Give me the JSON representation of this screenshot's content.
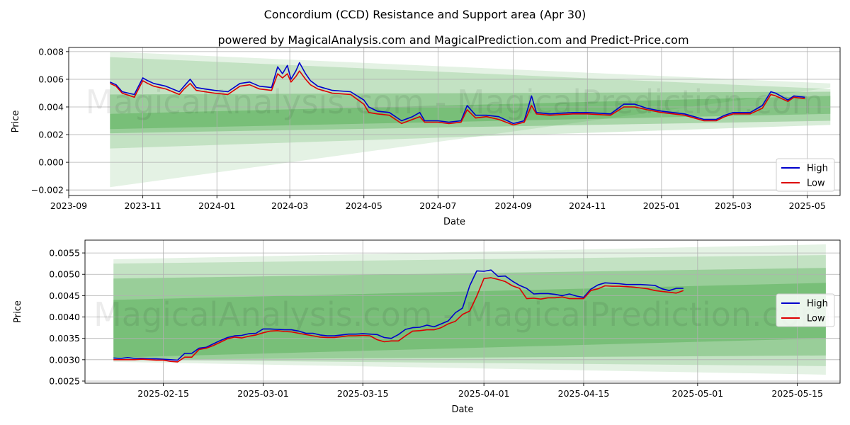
{
  "title": "Concordium (CCD) Resistance and Support area (Apr 30)",
  "subtitle": "powered by MagicalAnalysis.com and MagicalPrediction.com and Predict-Price.com",
  "watermark": "MagicalAnalysis.com - MagicalPrediction.com",
  "colors": {
    "high": "#0000cc",
    "low": "#dd0000",
    "band": "#2e9a2e",
    "grid": "#b0b0b0"
  },
  "chart_data": [
    {
      "type": "line",
      "xlabel": "Date",
      "ylabel": "Price",
      "xlim": [
        "2023-09-01",
        "2025-05-28"
      ],
      "ylim": [
        -0.0024,
        0.0083
      ],
      "x_ticks": [
        "2023-09-01",
        "2023-11-01",
        "2024-01-01",
        "2024-03-01",
        "2024-05-01",
        "2024-07-01",
        "2024-09-01",
        "2024-11-01",
        "2025-01-01",
        "2025-03-01",
        "2025-05-01"
      ],
      "x_tick_labels": [
        "2023-09",
        "2023-11",
        "2024-01",
        "2024-03",
        "2024-05",
        "2024-07",
        "2024-09",
        "2024-11",
        "2025-01",
        "2025-03",
        "2025-05"
      ],
      "y_ticks": [
        -0.002,
        0.0,
        0.002,
        0.004,
        0.006,
        0.008
      ],
      "y_tick_labels": [
        "−0.002",
        "0.000",
        "0.002",
        "0.004",
        "0.006",
        "0.008"
      ],
      "grid": true,
      "legend": {
        "position": "lower-right",
        "entries": [
          "High",
          "Low"
        ]
      },
      "bands": [
        {
          "start": "2023-10-05",
          "end": "2025-05-20",
          "lower_start": -0.0018,
          "lower_end": 0.0054,
          "upper_start": 0.008,
          "upper_end": 0.0057,
          "opacity": 0.13
        },
        {
          "start": "2023-10-05",
          "end": "2025-05-20",
          "lower_start": 0.001,
          "lower_end": 0.0027,
          "upper_start": 0.0076,
          "upper_end": 0.0053,
          "opacity": 0.18
        },
        {
          "start": "2023-10-05",
          "end": "2025-05-20",
          "lower_start": 0.0021,
          "lower_end": 0.003,
          "upper_start": 0.0049,
          "upper_end": 0.0051,
          "opacity": 0.28
        },
        {
          "start": "2023-10-05",
          "end": "2025-05-20",
          "lower_start": 0.0024,
          "lower_end": 0.0035,
          "upper_start": 0.0035,
          "upper_end": 0.0048,
          "opacity": 0.3
        }
      ],
      "series": [
        {
          "name": "High",
          "x": [
            "2023-10-05",
            "2023-10-10",
            "2023-10-15",
            "2023-10-25",
            "2023-11-01",
            "2023-11-05",
            "2023-11-10",
            "2023-11-20",
            "2023-12-01",
            "2023-12-05",
            "2023-12-10",
            "2023-12-15",
            "2023-12-22",
            "2023-12-30",
            "2024-01-10",
            "2024-01-20",
            "2024-01-28",
            "2024-02-05",
            "2024-02-15",
            "2024-02-20",
            "2024-02-24",
            "2024-02-28",
            "2024-03-02",
            "2024-03-06",
            "2024-03-09",
            "2024-03-14",
            "2024-03-18",
            "2024-03-24",
            "2024-04-05",
            "2024-04-20",
            "2024-05-01",
            "2024-05-05",
            "2024-05-12",
            "2024-05-22",
            "2024-06-01",
            "2024-06-10",
            "2024-06-16",
            "2024-06-20",
            "2024-07-01",
            "2024-07-10",
            "2024-07-20",
            "2024-07-25",
            "2024-08-01",
            "2024-08-10",
            "2024-08-20",
            "2024-09-01",
            "2024-09-10",
            "2024-09-16",
            "2024-09-20",
            "2024-10-01",
            "2024-10-20",
            "2024-11-01",
            "2024-11-20",
            "2024-12-01",
            "2024-12-10",
            "2024-12-20",
            "2025-01-01",
            "2025-01-20",
            "2025-02-05",
            "2025-02-15",
            "2025-02-22",
            "2025-03-01",
            "2025-03-15",
            "2025-03-25",
            "2025-04-01",
            "2025-04-05",
            "2025-04-15",
            "2025-04-20",
            "2025-04-29"
          ],
          "values": [
            0.0058,
            0.0056,
            0.0051,
            0.0049,
            0.0061,
            0.0059,
            0.0057,
            0.0055,
            0.0051,
            0.0055,
            0.006,
            0.0054,
            0.0053,
            0.0052,
            0.0051,
            0.0057,
            0.0058,
            0.0055,
            0.0054,
            0.0069,
            0.0064,
            0.007,
            0.006,
            0.0066,
            0.0072,
            0.0064,
            0.0059,
            0.0055,
            0.0052,
            0.0051,
            0.0045,
            0.004,
            0.0037,
            0.0036,
            0.003,
            0.0033,
            0.0036,
            0.003,
            0.003,
            0.0029,
            0.003,
            0.0041,
            0.0034,
            0.0034,
            0.0033,
            0.0028,
            0.003,
            0.0048,
            0.0036,
            0.0035,
            0.0036,
            0.0036,
            0.0035,
            0.0042,
            0.0042,
            0.0039,
            0.0037,
            0.0035,
            0.0031,
            0.0031,
            0.0034,
            0.0036,
            0.0036,
            0.0041,
            0.0051,
            0.005,
            0.0045,
            0.0048,
            0.0047
          ]
        },
        {
          "name": "Low",
          "x": [
            "2023-10-05",
            "2023-10-10",
            "2023-10-15",
            "2023-10-25",
            "2023-11-01",
            "2023-11-05",
            "2023-11-10",
            "2023-11-20",
            "2023-12-01",
            "2023-12-05",
            "2023-12-10",
            "2023-12-15",
            "2023-12-22",
            "2023-12-30",
            "2024-01-10",
            "2024-01-20",
            "2024-01-28",
            "2024-02-05",
            "2024-02-15",
            "2024-02-20",
            "2024-02-24",
            "2024-02-28",
            "2024-03-02",
            "2024-03-06",
            "2024-03-09",
            "2024-03-14",
            "2024-03-18",
            "2024-03-24",
            "2024-04-05",
            "2024-04-20",
            "2024-05-01",
            "2024-05-05",
            "2024-05-12",
            "2024-05-22",
            "2024-06-01",
            "2024-06-10",
            "2024-06-16",
            "2024-06-20",
            "2024-07-01",
            "2024-07-10",
            "2024-07-20",
            "2024-07-25",
            "2024-08-01",
            "2024-08-10",
            "2024-08-20",
            "2024-09-01",
            "2024-09-10",
            "2024-09-16",
            "2024-09-20",
            "2024-10-01",
            "2024-10-20",
            "2024-11-01",
            "2024-11-20",
            "2024-12-01",
            "2024-12-10",
            "2024-12-20",
            "2025-01-01",
            "2025-01-20",
            "2025-02-05",
            "2025-02-15",
            "2025-02-22",
            "2025-03-01",
            "2025-03-15",
            "2025-03-25",
            "2025-04-01",
            "2025-04-05",
            "2025-04-15",
            "2025-04-20",
            "2025-04-29"
          ],
          "values": [
            0.0057,
            0.0055,
            0.005,
            0.0047,
            0.0059,
            0.0057,
            0.0055,
            0.0053,
            0.0049,
            0.0053,
            0.0057,
            0.0052,
            0.0051,
            0.005,
            0.0049,
            0.0055,
            0.0056,
            0.0053,
            0.0052,
            0.0064,
            0.0061,
            0.0064,
            0.0058,
            0.0062,
            0.0066,
            0.006,
            0.0056,
            0.0053,
            0.005,
            0.0049,
            0.0042,
            0.0036,
            0.0035,
            0.0034,
            0.0028,
            0.0031,
            0.0033,
            0.0029,
            0.0029,
            0.0028,
            0.0029,
            0.0038,
            0.0032,
            0.0033,
            0.0031,
            0.0027,
            0.0029,
            0.0041,
            0.0035,
            0.0034,
            0.0035,
            0.0035,
            0.0034,
            0.004,
            0.004,
            0.0038,
            0.0036,
            0.0034,
            0.003,
            0.003,
            0.0033,
            0.0035,
            0.0035,
            0.0039,
            0.0049,
            0.0048,
            0.0044,
            0.0047,
            0.0046
          ]
        }
      ]
    },
    {
      "type": "line",
      "xlabel": "Date",
      "ylabel": "Price",
      "xlim": [
        "2025-02-04",
        "2025-05-21"
      ],
      "ylim": [
        0.00245,
        0.0058
      ],
      "x_ticks": [
        "2025-02-15",
        "2025-03-01",
        "2025-03-15",
        "2025-04-01",
        "2025-04-15",
        "2025-05-01",
        "2025-05-15"
      ],
      "x_tick_labels": [
        "2025-02-15",
        "2025-03-01",
        "2025-03-15",
        "2025-04-01",
        "2025-04-15",
        "2025-05-01",
        "2025-05-15"
      ],
      "y_ticks": [
        0.0025,
        0.003,
        0.0035,
        0.004,
        0.0045,
        0.005,
        0.0055
      ],
      "y_tick_labels": [
        "0.0025",
        "0.0030",
        "0.0035",
        "0.0040",
        "0.0045",
        "0.0050",
        "0.0055"
      ],
      "grid": true,
      "legend": {
        "position": "center-right",
        "entries": [
          "High",
          "Low"
        ]
      },
      "bands": [
        {
          "start": "2025-02-08",
          "end": "2025-05-19",
          "lower_start": 0.00295,
          "lower_end": 0.00265,
          "upper_start": 0.00535,
          "upper_end": 0.0057,
          "opacity": 0.13
        },
        {
          "start": "2025-02-08",
          "end": "2025-05-19",
          "lower_start": 0.003,
          "lower_end": 0.00285,
          "upper_start": 0.00525,
          "upper_end": 0.00545,
          "opacity": 0.18
        },
        {
          "start": "2025-02-08",
          "end": "2025-05-19",
          "lower_start": 0.003,
          "lower_end": 0.0031,
          "upper_start": 0.0049,
          "upper_end": 0.00515,
          "opacity": 0.28
        },
        {
          "start": "2025-02-08",
          "end": "2025-05-19",
          "lower_start": 0.00305,
          "lower_end": 0.0035,
          "upper_start": 0.0044,
          "upper_end": 0.0048,
          "opacity": 0.3
        }
      ],
      "series": [
        {
          "name": "High",
          "x": [
            "2025-02-08",
            "2025-02-09",
            "2025-02-10",
            "2025-02-11",
            "2025-02-12",
            "2025-02-13",
            "2025-02-14",
            "2025-02-15",
            "2025-02-16",
            "2025-02-17",
            "2025-02-18",
            "2025-02-19",
            "2025-02-20",
            "2025-02-21",
            "2025-02-22",
            "2025-02-23",
            "2025-02-24",
            "2025-02-25",
            "2025-02-26",
            "2025-02-27",
            "2025-02-28",
            "2025-03-01",
            "2025-03-02",
            "2025-03-03",
            "2025-03-04",
            "2025-03-05",
            "2025-03-06",
            "2025-03-07",
            "2025-03-08",
            "2025-03-09",
            "2025-03-10",
            "2025-03-11",
            "2025-03-12",
            "2025-03-13",
            "2025-03-14",
            "2025-03-15",
            "2025-03-16",
            "2025-03-17",
            "2025-03-18",
            "2025-03-19",
            "2025-03-20",
            "2025-03-21",
            "2025-03-22",
            "2025-03-23",
            "2025-03-24",
            "2025-03-25",
            "2025-03-26",
            "2025-03-27",
            "2025-03-28",
            "2025-03-29",
            "2025-03-30",
            "2025-03-31",
            "2025-04-01",
            "2025-04-02",
            "2025-04-03",
            "2025-04-04",
            "2025-04-05",
            "2025-04-06",
            "2025-04-07",
            "2025-04-08",
            "2025-04-09",
            "2025-04-10",
            "2025-04-11",
            "2025-04-12",
            "2025-04-13",
            "2025-04-14",
            "2025-04-15",
            "2025-04-16",
            "2025-04-17",
            "2025-04-18",
            "2025-04-19",
            "2025-04-20",
            "2025-04-21",
            "2025-04-22",
            "2025-04-23",
            "2025-04-24",
            "2025-04-25",
            "2025-04-26",
            "2025-04-27",
            "2025-04-28",
            "2025-04-29"
          ],
          "values": [
            0.00304,
            0.00303,
            0.00305,
            0.00303,
            0.00303,
            0.00302,
            0.00302,
            0.00301,
            0.003,
            0.00299,
            0.00315,
            0.00315,
            0.00327,
            0.00329,
            0.00337,
            0.00345,
            0.00352,
            0.00356,
            0.00357,
            0.00361,
            0.00362,
            0.00372,
            0.00372,
            0.00371,
            0.0037,
            0.0037,
            0.00367,
            0.00362,
            0.00362,
            0.00358,
            0.00356,
            0.00356,
            0.00358,
            0.0036,
            0.0036,
            0.00361,
            0.0036,
            0.00359,
            0.00352,
            0.0035,
            0.00359,
            0.00371,
            0.00375,
            0.00376,
            0.00381,
            0.00377,
            0.00384,
            0.00391,
            0.0041,
            0.00421,
            0.00473,
            0.00508,
            0.00507,
            0.0051,
            0.00495,
            0.00496,
            0.00484,
            0.00474,
            0.00467,
            0.00454,
            0.00455,
            0.00455,
            0.00453,
            0.0045,
            0.00454,
            0.00449,
            0.00446,
            0.00465,
            0.00475,
            0.0048,
            0.00479,
            0.00478,
            0.00476,
            0.00476,
            0.00476,
            0.00475,
            0.00474,
            0.00466,
            0.00462,
            0.00467,
            0.00467
          ]
        },
        {
          "name": "Low",
          "x": [
            "2025-02-08",
            "2025-02-09",
            "2025-02-10",
            "2025-02-11",
            "2025-02-12",
            "2025-02-13",
            "2025-02-14",
            "2025-02-15",
            "2025-02-16",
            "2025-02-17",
            "2025-02-18",
            "2025-02-19",
            "2025-02-20",
            "2025-02-21",
            "2025-02-22",
            "2025-02-23",
            "2025-02-24",
            "2025-02-25",
            "2025-02-26",
            "2025-02-27",
            "2025-02-28",
            "2025-03-01",
            "2025-03-02",
            "2025-03-03",
            "2025-03-04",
            "2025-03-05",
            "2025-03-06",
            "2025-03-07",
            "2025-03-08",
            "2025-03-09",
            "2025-03-10",
            "2025-03-11",
            "2025-03-12",
            "2025-03-13",
            "2025-03-14",
            "2025-03-15",
            "2025-03-16",
            "2025-03-17",
            "2025-03-18",
            "2025-03-19",
            "2025-03-20",
            "2025-03-21",
            "2025-03-22",
            "2025-03-23",
            "2025-03-24",
            "2025-03-25",
            "2025-03-26",
            "2025-03-27",
            "2025-03-28",
            "2025-03-29",
            "2025-03-30",
            "2025-03-31",
            "2025-04-01",
            "2025-04-02",
            "2025-04-03",
            "2025-04-04",
            "2025-04-05",
            "2025-04-06",
            "2025-04-07",
            "2025-04-08",
            "2025-04-09",
            "2025-04-10",
            "2025-04-11",
            "2025-04-12",
            "2025-04-13",
            "2025-04-14",
            "2025-04-15",
            "2025-04-16",
            "2025-04-17",
            "2025-04-18",
            "2025-04-19",
            "2025-04-20",
            "2025-04-21",
            "2025-04-22",
            "2025-04-23",
            "2025-04-24",
            "2025-04-25",
            "2025-04-26",
            "2025-04-27",
            "2025-04-28",
            "2025-04-29"
          ],
          "values": [
            0.003,
            0.003,
            0.003,
            0.003,
            0.00301,
            0.003,
            0.00299,
            0.00299,
            0.00296,
            0.00295,
            0.00306,
            0.00306,
            0.00324,
            0.00327,
            0.00333,
            0.00341,
            0.00349,
            0.00353,
            0.00351,
            0.00355,
            0.00358,
            0.00363,
            0.00367,
            0.00368,
            0.00366,
            0.00365,
            0.00362,
            0.00359,
            0.00356,
            0.00353,
            0.00352,
            0.00352,
            0.00354,
            0.00356,
            0.00356,
            0.00357,
            0.00356,
            0.00347,
            0.00342,
            0.00344,
            0.00344,
            0.00356,
            0.00367,
            0.00368,
            0.0037,
            0.0037,
            0.00375,
            0.00384,
            0.0039,
            0.00406,
            0.00414,
            0.00449,
            0.0049,
            0.00492,
            0.00488,
            0.00483,
            0.00473,
            0.00467,
            0.00443,
            0.00444,
            0.00442,
            0.00445,
            0.00445,
            0.00447,
            0.00443,
            0.00443,
            0.00443,
            0.00462,
            0.00466,
            0.00473,
            0.00472,
            0.00472,
            0.00471,
            0.0047,
            0.00468,
            0.00466,
            0.00462,
            0.0046,
            0.00458,
            0.00456,
            0.00462
          ]
        }
      ]
    }
  ]
}
